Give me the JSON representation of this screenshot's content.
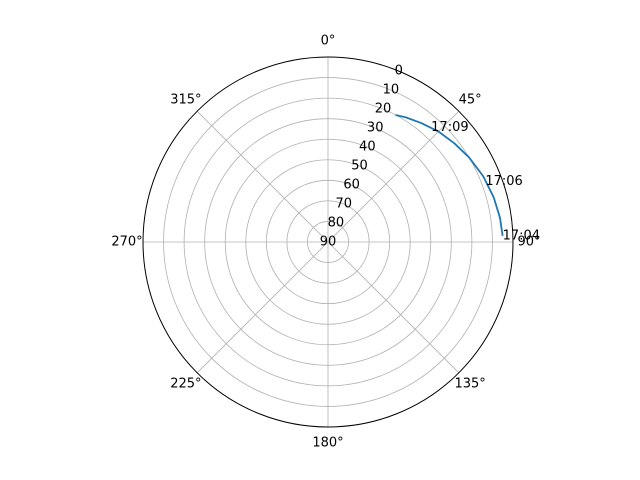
{
  "chart_data": {
    "type": "line",
    "projection": "polar",
    "theta_zero_location": "N",
    "theta_direction": "clockwise",
    "r_axis_inverted": true,
    "rlim": [
      90,
      0
    ],
    "grid": true,
    "angle_tick_labels": [
      {
        "deg": 0,
        "label": "0°"
      },
      {
        "deg": 45,
        "label": "45°"
      },
      {
        "deg": 90,
        "label": "90°"
      },
      {
        "deg": 135,
        "label": "135°"
      },
      {
        "deg": 180,
        "label": "180°"
      },
      {
        "deg": 225,
        "label": "225°"
      },
      {
        "deg": 270,
        "label": "270°"
      },
      {
        "deg": 315,
        "label": "315°"
      }
    ],
    "radial_tick_labels": [
      {
        "value": 0,
        "label": "0"
      },
      {
        "value": 10,
        "label": "10"
      },
      {
        "value": 20,
        "label": "20"
      },
      {
        "value": 30,
        "label": "30"
      },
      {
        "value": 40,
        "label": "40"
      },
      {
        "value": 50,
        "label": "50"
      },
      {
        "value": 60,
        "label": "60"
      },
      {
        "value": 70,
        "label": "70"
      },
      {
        "value": 80,
        "label": "80"
      },
      {
        "value": 90,
        "label": "90"
      }
    ],
    "series": [
      {
        "color": "#1f77b4",
        "theta_deg": [
          88,
          82,
          75,
          67,
          59,
          52,
          45,
          38,
          32,
          28
        ],
        "r": [
          5,
          5.5,
          6.5,
          8,
          10,
          12,
          14,
          16.5,
          18.5,
          20
        ]
      }
    ],
    "annotations": [
      {
        "label": "17:04",
        "theta_deg": 88,
        "r": 5
      },
      {
        "label": "17:06",
        "theta_deg": 69,
        "r": 8
      },
      {
        "label": "17:09",
        "theta_deg": 42,
        "r": 15
      }
    ]
  }
}
